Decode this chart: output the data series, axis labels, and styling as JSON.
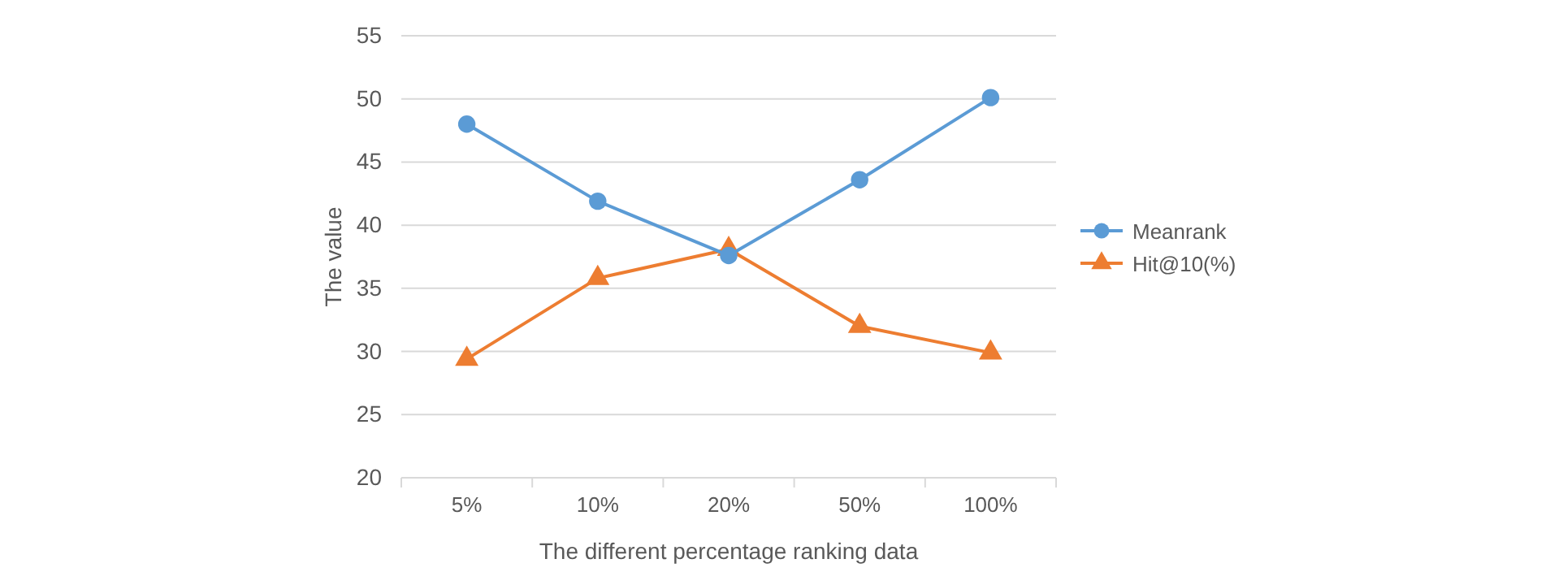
{
  "chart_data": {
    "type": "line",
    "xlabel": "The different percentage ranking data",
    "ylabel": "The value",
    "categories": [
      "5%",
      "10%",
      "20%",
      "50%",
      "100%"
    ],
    "series": [
      {
        "name": "Meanrank",
        "color": "#5b9bd5",
        "marker": "circle",
        "values": [
          48,
          41.9,
          37.6,
          43.6,
          50.1
        ]
      },
      {
        "name": "Hit@10(%)",
        "color": "#ed7d31",
        "marker": "triangle",
        "values": [
          29.4,
          35.8,
          38.1,
          32,
          29.9
        ]
      }
    ],
    "ylim": [
      20,
      55
    ],
    "yticks": [
      20,
      25,
      30,
      35,
      40,
      45,
      50,
      55
    ],
    "grid": "y",
    "legend": "right",
    "line_style": "solid"
  }
}
